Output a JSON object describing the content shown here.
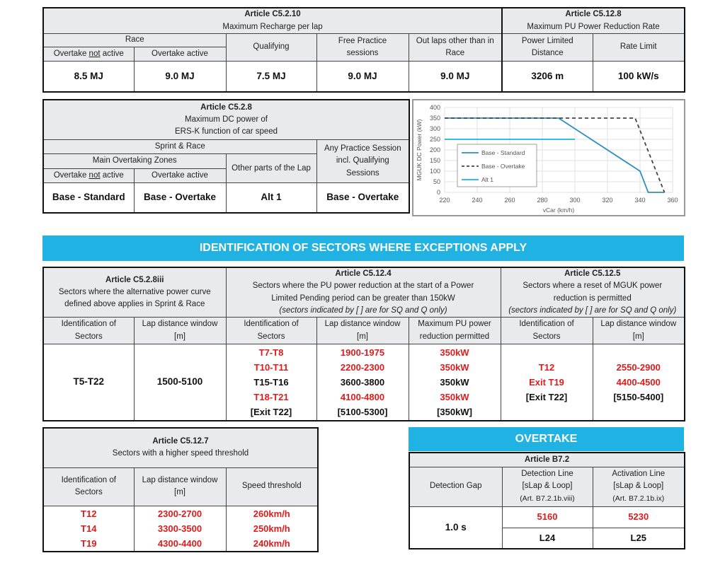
{
  "table1": {
    "article": "Article C5.2.10",
    "subtitle": "Maximum Recharge per lap",
    "race": "Race",
    "ot_not_active_pre": "Overtake ",
    "not": "not",
    "ot_not_active_post": " active",
    "ot_active": "Overtake active",
    "qualifying": "Qualifying",
    "fp_l1": "Free Practice",
    "fp_l2": "sessions",
    "out_l1": "Out laps other than in",
    "out_l2": "Race",
    "v1": "8.5 MJ",
    "v2": "9.0 MJ",
    "v3": "7.5 MJ",
    "v4": "9.0 MJ",
    "v5": "9.0 MJ"
  },
  "table2": {
    "article": "Article C5.12.8",
    "subtitle": "Maximum PU Power Reduction Rate",
    "col1_l1": "Power Limited",
    "col1_l2": "Distance",
    "col2": "Rate Limit",
    "v1": "3206 m",
    "v2": "100 kW/s"
  },
  "table3": {
    "article": "Article C5.2.8",
    "sub_l1": "Maximum DC power of",
    "sub_l2": "ERS-K function of car speed",
    "sprint": "Sprint & Race",
    "main_zones": "Main Overtaking Zones",
    "ot_not_active_pre": "Overtake ",
    "not": "not",
    "ot_not_active_post": " active",
    "ot_active": "Overtake active",
    "other": "Other parts of the Lap",
    "any_l1": "Any Practice Session",
    "any_l2": "incl. Qualifying",
    "any_l3": "Sessions",
    "v1": "Base - Standard",
    "v2": "Base - Overtake",
    "v3": "Alt 1",
    "v4": "Base - Overtake"
  },
  "banner_sectors": "IDENTIFICATION OF SECTORS WHERE EXCEPTIONS APPLY",
  "table4": {
    "a_article": "Article C5.2.8iii",
    "a_l1": "Sectors where the alternative power curve",
    "a_l2": "defined above applies in Sprint & Race",
    "b_article": "Article C5.12.4",
    "b_l1": "Sectors where the PU power reduction at the start of a Power",
    "b_l2": "Limited Pending period can be greater than 150kW",
    "b_l3": "(sectors indicated by [ ] are for SQ and Q only)",
    "c_article": "Article C5.12.5",
    "c_l1": "Sectors where a reset of MGUK power",
    "c_l2": "reduction is permitted",
    "c_l3": "(sectors indicated by [ ] are for SQ and Q only)",
    "h_id_l1": "Identification of",
    "h_id_l2": "Sectors",
    "h_lap_l1": "Lap distance window",
    "h_lap_l2": "[m]",
    "h_max_l1": "Maximum PU power",
    "h_max_l2": "reduction permitted",
    "a_sector": "T5-T22",
    "a_window": "1500-5100",
    "b_rows": [
      {
        "sector": "T7-T8",
        "window": "1900-1975",
        "power": "350kW",
        "red": true
      },
      {
        "sector": "T10-T11",
        "window": "2200-2300",
        "power": "350kW",
        "red": true
      },
      {
        "sector": "T15-T16",
        "window": "3600-3800",
        "power": "350kW",
        "red": false
      },
      {
        "sector": "T18-T21",
        "window": "4100-4800",
        "power": "350kW",
        "red": true
      },
      {
        "sector": "[Exit T22]",
        "window": "[5100-5300]",
        "power": "[350kW]",
        "red": false
      }
    ],
    "c_rows": [
      {
        "sector": "T12",
        "window": "2550-2900",
        "red": true
      },
      {
        "sector": "Exit T19",
        "window": "4400-4500",
        "red": true
      },
      {
        "sector": "[Exit T22]",
        "window": "[5150-5400]",
        "red": false
      }
    ]
  },
  "table5": {
    "article": "Article C5.12.7",
    "subtitle": "Sectors with a higher speed threshold",
    "h_id_l1": "Identification of",
    "h_id_l2": "Sectors",
    "h_lap_l1": "Lap distance window",
    "h_lap_l2": "[m]",
    "h_speed": "Speed threshold",
    "rows": [
      {
        "sector": "T12",
        "window": "2300-2700",
        "speed": "260km/h"
      },
      {
        "sector": "T14",
        "window": "3300-3500",
        "speed": "250km/h"
      },
      {
        "sector": "T19",
        "window": "4300-4400",
        "speed": "240km/h"
      }
    ]
  },
  "banner_overtake": "OVERTAKE",
  "table6": {
    "article": "Article B7.2",
    "gap": "Detection Gap",
    "det_l1": "Detection Line",
    "det_l2": "[sLap & Loop]",
    "det_l3": "(Art. B7.2.1b.viii)",
    "act_l1": "Activation Line",
    "act_l2": "[sLap & Loop]",
    "act_l3": "(Art. B7.2.1b.ix)",
    "gap_val": "1.0 s",
    "det_val": "5160",
    "act_val": "5230",
    "det_loop": "L24",
    "act_loop": "L25"
  },
  "colors": {
    "accent": "#1fb2e3",
    "red": "#e01b1b",
    "header_bg": "#e8eaeb"
  },
  "chart_data": {
    "type": "line",
    "xlabel": "vCar (km/h)",
    "ylabel": "MGUK DC Power (kW)",
    "xlim": [
      220,
      360
    ],
    "ylim": [
      0,
      400
    ],
    "xticks": [
      220,
      240,
      260,
      280,
      300,
      320,
      340,
      360
    ],
    "yticks": [
      0,
      50,
      100,
      150,
      200,
      250,
      300,
      350,
      400
    ],
    "grid": true,
    "legend_position": "center-left",
    "series": [
      {
        "name": "Base - Standard",
        "style": "solid",
        "color": "#2f8fc0",
        "points": [
          [
            220,
            350
          ],
          [
            290,
            350
          ],
          [
            340,
            100
          ],
          [
            345,
            0
          ],
          [
            355,
            0
          ]
        ]
      },
      {
        "name": "Base - Overtake",
        "style": "dashed",
        "color": "#444444",
        "points": [
          [
            220,
            350
          ],
          [
            337,
            350
          ],
          [
            355,
            0
          ]
        ]
      },
      {
        "name": "Alt 1",
        "style": "solid",
        "color": "#1fb2e3",
        "points": [
          [
            220,
            250
          ],
          [
            300,
            250
          ]
        ]
      }
    ]
  }
}
